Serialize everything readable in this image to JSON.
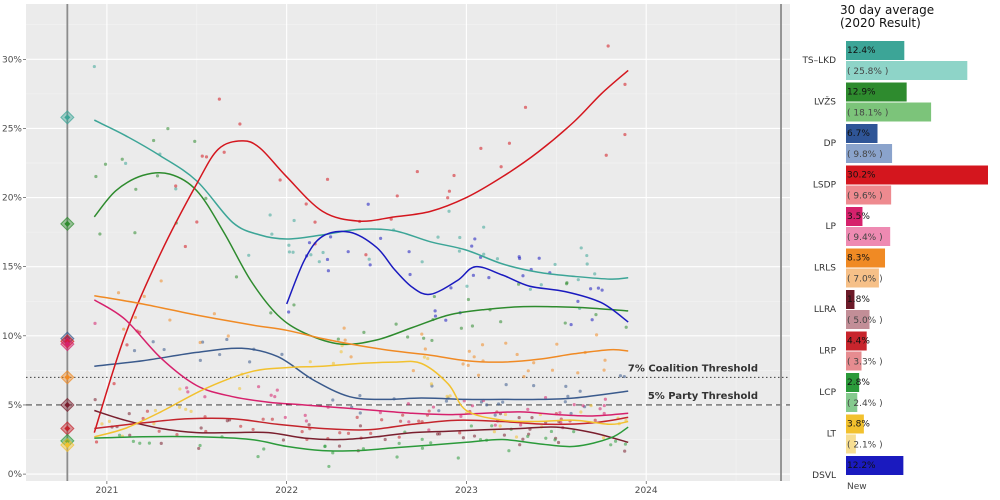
{
  "chart_data": [
    {
      "type": "line",
      "title": "",
      "xlabel": "",
      "ylabel": "",
      "xlim": [
        2020.55,
        2024.8
      ],
      "ylim": [
        -0.5,
        34
      ],
      "x_ticks": [
        2021,
        2022,
        2023,
        2024
      ],
      "x_tick_labels": [
        "2021",
        "2022",
        "2023",
        "2024"
      ],
      "y_ticks": [
        0,
        5,
        10,
        15,
        20,
        25,
        30
      ],
      "y_tick_labels": [
        "0%",
        "5%",
        "10%",
        "15%",
        "20%",
        "25%",
        "30%"
      ],
      "grid": true,
      "election_marker_x": 2020.78,
      "end_marker_x": 2024.75,
      "thresholds": [
        {
          "value": 7,
          "label": "7% Coalition Threshold",
          "style": "dotted"
        },
        {
          "value": 5,
          "label": "5% Party Threshold",
          "style": "dashed"
        }
      ],
      "series": [
        {
          "name": "TS–LKD",
          "color": "#3ca597",
          "result": 25.8,
          "points": [
            [
              2020.93,
              25.6
            ],
            [
              2021.1,
              24.5
            ],
            [
              2021.3,
              23.0
            ],
            [
              2021.5,
              21.2
            ],
            [
              2021.7,
              18.2
            ],
            [
              2021.85,
              17.3
            ],
            [
              2022.0,
              17.0
            ],
            [
              2022.2,
              17.3
            ],
            [
              2022.4,
              17.7
            ],
            [
              2022.6,
              17.6
            ],
            [
              2022.8,
              16.8
            ],
            [
              2023.0,
              16.2
            ],
            [
              2023.2,
              15.2
            ],
            [
              2023.4,
              14.6
            ],
            [
              2023.6,
              14.3
            ],
            [
              2023.8,
              14.1
            ],
            [
              2023.9,
              14.2
            ]
          ]
        },
        {
          "name": "LVŽS",
          "color": "#2e8b2e",
          "result": 18.1,
          "points": [
            [
              2020.93,
              18.6
            ],
            [
              2021.05,
              20.5
            ],
            [
              2021.2,
              21.6
            ],
            [
              2021.35,
              21.7
            ],
            [
              2021.5,
              20.5
            ],
            [
              2021.65,
              17.5
            ],
            [
              2021.8,
              14.0
            ],
            [
              2021.95,
              11.5
            ],
            [
              2022.1,
              10.2
            ],
            [
              2022.3,
              9.4
            ],
            [
              2022.5,
              9.7
            ],
            [
              2022.7,
              10.6
            ],
            [
              2022.9,
              11.5
            ],
            [
              2023.1,
              11.9
            ],
            [
              2023.3,
              12.1
            ],
            [
              2023.5,
              12.1
            ],
            [
              2023.7,
              12.0
            ],
            [
              2023.9,
              11.8
            ]
          ]
        },
        {
          "name": "DP",
          "color": "#3a5a8c",
          "result": 9.8,
          "points": [
            [
              2020.93,
              7.8
            ],
            [
              2021.2,
              8.2
            ],
            [
              2021.5,
              8.8
            ],
            [
              2021.75,
              9.1
            ],
            [
              2021.95,
              8.5
            ],
            [
              2022.15,
              6.8
            ],
            [
              2022.35,
              5.6
            ],
            [
              2022.55,
              5.4
            ],
            [
              2022.75,
              5.5
            ],
            [
              2023.0,
              5.4
            ],
            [
              2023.2,
              5.4
            ],
            [
              2023.4,
              5.4
            ],
            [
              2023.6,
              5.5
            ],
            [
              2023.9,
              6.0
            ]
          ]
        },
        {
          "name": "LSDP",
          "color": "#d4161e",
          "result": 9.6,
          "points": [
            [
              2020.93,
              3.0
            ],
            [
              2021.1,
              10.0
            ],
            [
              2021.3,
              16.0
            ],
            [
              2021.5,
              21.0
            ],
            [
              2021.62,
              23.5
            ],
            [
              2021.75,
              24.1
            ],
            [
              2021.85,
              23.6
            ],
            [
              2022.0,
              21.5
            ],
            [
              2022.2,
              19.0
            ],
            [
              2022.4,
              18.3
            ],
            [
              2022.6,
              18.6
            ],
            [
              2022.8,
              19.0
            ],
            [
              2023.0,
              20.0
            ],
            [
              2023.2,
              21.5
            ],
            [
              2023.4,
              23.3
            ],
            [
              2023.6,
              25.5
            ],
            [
              2023.75,
              27.5
            ],
            [
              2023.9,
              29.2
            ]
          ]
        },
        {
          "name": "LP",
          "color": "#d6216c",
          "result": 9.4,
          "points": [
            [
              2020.93,
              12.6
            ],
            [
              2021.1,
              11.2
            ],
            [
              2021.3,
              8.4
            ],
            [
              2021.5,
              6.4
            ],
            [
              2021.7,
              5.6
            ],
            [
              2021.9,
              5.2
            ],
            [
              2022.1,
              5.0
            ],
            [
              2022.3,
              4.8
            ],
            [
              2022.5,
              4.6
            ],
            [
              2022.7,
              4.4
            ],
            [
              2022.9,
              4.3
            ],
            [
              2023.1,
              4.4
            ],
            [
              2023.3,
              4.5
            ],
            [
              2023.5,
              4.3
            ],
            [
              2023.7,
              4.2
            ],
            [
              2023.9,
              4.4
            ]
          ]
        },
        {
          "name": "LRLS",
          "color": "#f08a24",
          "result": 7.0,
          "points": [
            [
              2020.93,
              12.9
            ],
            [
              2021.2,
              12.3
            ],
            [
              2021.5,
              11.5
            ],
            [
              2021.8,
              10.8
            ],
            [
              2022.0,
              10.4
            ],
            [
              2022.2,
              9.8
            ],
            [
              2022.4,
              9.3
            ],
            [
              2022.6,
              8.9
            ],
            [
              2022.8,
              8.6
            ],
            [
              2023.0,
              8.2
            ],
            [
              2023.2,
              8.1
            ],
            [
              2023.4,
              8.3
            ],
            [
              2023.6,
              8.7
            ],
            [
              2023.8,
              9.0
            ],
            [
              2023.9,
              8.9
            ]
          ]
        },
        {
          "name": "LLRA",
          "color": "#7a1f2e",
          "result": 5.0,
          "points": [
            [
              2020.93,
              4.6
            ],
            [
              2021.1,
              3.9
            ],
            [
              2021.3,
              3.3
            ],
            [
              2021.5,
              3.0
            ],
            [
              2021.7,
              3.0
            ],
            [
              2021.9,
              3.0
            ],
            [
              2022.1,
              2.6
            ],
            [
              2022.3,
              2.5
            ],
            [
              2022.5,
              2.7
            ],
            [
              2022.7,
              3.0
            ],
            [
              2022.9,
              3.1
            ],
            [
              2023.1,
              3.2
            ],
            [
              2023.3,
              3.3
            ],
            [
              2023.5,
              3.4
            ],
            [
              2023.7,
              3.0
            ],
            [
              2023.9,
              2.3
            ]
          ]
        },
        {
          "name": "LRP",
          "color": "#c4242c",
          "result": 3.3,
          "points": [
            [
              2020.93,
              3.3
            ],
            [
              2021.2,
              3.7
            ],
            [
              2021.45,
              4.0
            ],
            [
              2021.7,
              4.0
            ],
            [
              2021.95,
              3.6
            ],
            [
              2022.2,
              3.3
            ],
            [
              2022.45,
              3.2
            ],
            [
              2022.7,
              3.6
            ],
            [
              2022.95,
              3.9
            ],
            [
              2023.2,
              3.8
            ],
            [
              2023.45,
              3.6
            ],
            [
              2023.7,
              3.7
            ],
            [
              2023.9,
              4.1
            ]
          ]
        },
        {
          "name": "LCP",
          "color": "#2b9a3a",
          "result": 2.4,
          "points": [
            [
              2020.93,
              2.6
            ],
            [
              2021.2,
              2.7
            ],
            [
              2021.5,
              2.7
            ],
            [
              2021.8,
              2.5
            ],
            [
              2022.0,
              2.0
            ],
            [
              2022.2,
              1.7
            ],
            [
              2022.4,
              1.7
            ],
            [
              2022.6,
              1.9
            ],
            [
              2022.8,
              2.1
            ],
            [
              2023.0,
              2.3
            ],
            [
              2023.2,
              2.5
            ],
            [
              2023.4,
              2.2
            ],
            [
              2023.6,
              2.0
            ],
            [
              2023.8,
              2.6
            ],
            [
              2023.9,
              3.4
            ]
          ]
        },
        {
          "name": "LT",
          "color": "#f2c12e",
          "result": 2.1,
          "points": [
            [
              2020.93,
              2.7
            ],
            [
              2021.1,
              3.3
            ],
            [
              2021.3,
              4.5
            ],
            [
              2021.55,
              6.2
            ],
            [
              2021.8,
              7.4
            ],
            [
              2022.0,
              7.7
            ],
            [
              2022.2,
              7.8
            ],
            [
              2022.4,
              8.0
            ],
            [
              2022.6,
              8.1
            ],
            [
              2022.75,
              8.0
            ],
            [
              2022.9,
              6.5
            ],
            [
              2023.0,
              4.6
            ],
            [
              2023.2,
              3.9
            ],
            [
              2023.4,
              3.8
            ],
            [
              2023.6,
              3.9
            ],
            [
              2023.8,
              3.6
            ],
            [
              2023.9,
              3.8
            ]
          ]
        },
        {
          "name": "DSVL",
          "color": "#1a1abf",
          "result": null,
          "points": [
            [
              2022.0,
              12.3
            ],
            [
              2022.1,
              15.5
            ],
            [
              2022.2,
              17.2
            ],
            [
              2022.35,
              17.5
            ],
            [
              2022.5,
              16.4
            ],
            [
              2022.6,
              14.8
            ],
            [
              2022.7,
              13.5
            ],
            [
              2022.8,
              13.0
            ],
            [
              2022.95,
              14.0
            ],
            [
              2023.05,
              15.0
            ],
            [
              2023.2,
              14.4
            ],
            [
              2023.35,
              13.6
            ],
            [
              2023.55,
              13.2
            ],
            [
              2023.75,
              12.4
            ],
            [
              2023.9,
              11.0
            ]
          ]
        }
      ]
    },
    {
      "type": "bar",
      "title": "30 day average\n(2020 Result)",
      "title_lines": [
        "30 day average",
        "(2020 Result)"
      ],
      "orientation": "horizontal",
      "xlim": [
        0,
        30.2
      ],
      "categories": [
        "TS–LKD",
        "LVŽS",
        "DP",
        "LSDP",
        "LP",
        "LRLS",
        "LLRA",
        "LRP",
        "LCP",
        "LT",
        "DSVL"
      ],
      "current": [
        12.4,
        12.9,
        6.7,
        30.2,
        3.5,
        8.3,
        1.8,
        4.4,
        2.8,
        3.8,
        12.2
      ],
      "current_labels": [
        "12.4%",
        "12.9%",
        "6.7%",
        "30.2%",
        "3.5%",
        "8.3%",
        "1.8%",
        "4.4%",
        "2.8%",
        "3.8%",
        "12.2%"
      ],
      "previous": [
        25.8,
        18.1,
        9.8,
        9.6,
        9.4,
        7.0,
        5.0,
        3.3,
        2.4,
        2.1,
        null
      ],
      "previous_labels": [
        "( 25.8% )",
        "( 18.1% )",
        "( 9.8% )",
        "( 9.6% )",
        "( 9.4% )",
        "( 7.0% )",
        "( 5.0% )",
        "( 3.3% )",
        "( 2.4% )",
        "( 2.1% )",
        "New"
      ],
      "colors": [
        "#3ca597",
        "#2e8b2e",
        "#2f5597",
        "#d4161e",
        "#d6216c",
        "#f08a24",
        "#6b1a28",
        "#c8252d",
        "#2b9a3a",
        "#f2c12e",
        "#1a1abf"
      ],
      "light_colors": [
        "#8ed4c8",
        "#7cc47a",
        "#8aa3cc",
        "#ee8a8f",
        "#ee8ab2",
        "#f6c088",
        "#c28e97",
        "#e68c90",
        "#85ca8e",
        "#f7de92",
        "#ffffff"
      ]
    }
  ]
}
